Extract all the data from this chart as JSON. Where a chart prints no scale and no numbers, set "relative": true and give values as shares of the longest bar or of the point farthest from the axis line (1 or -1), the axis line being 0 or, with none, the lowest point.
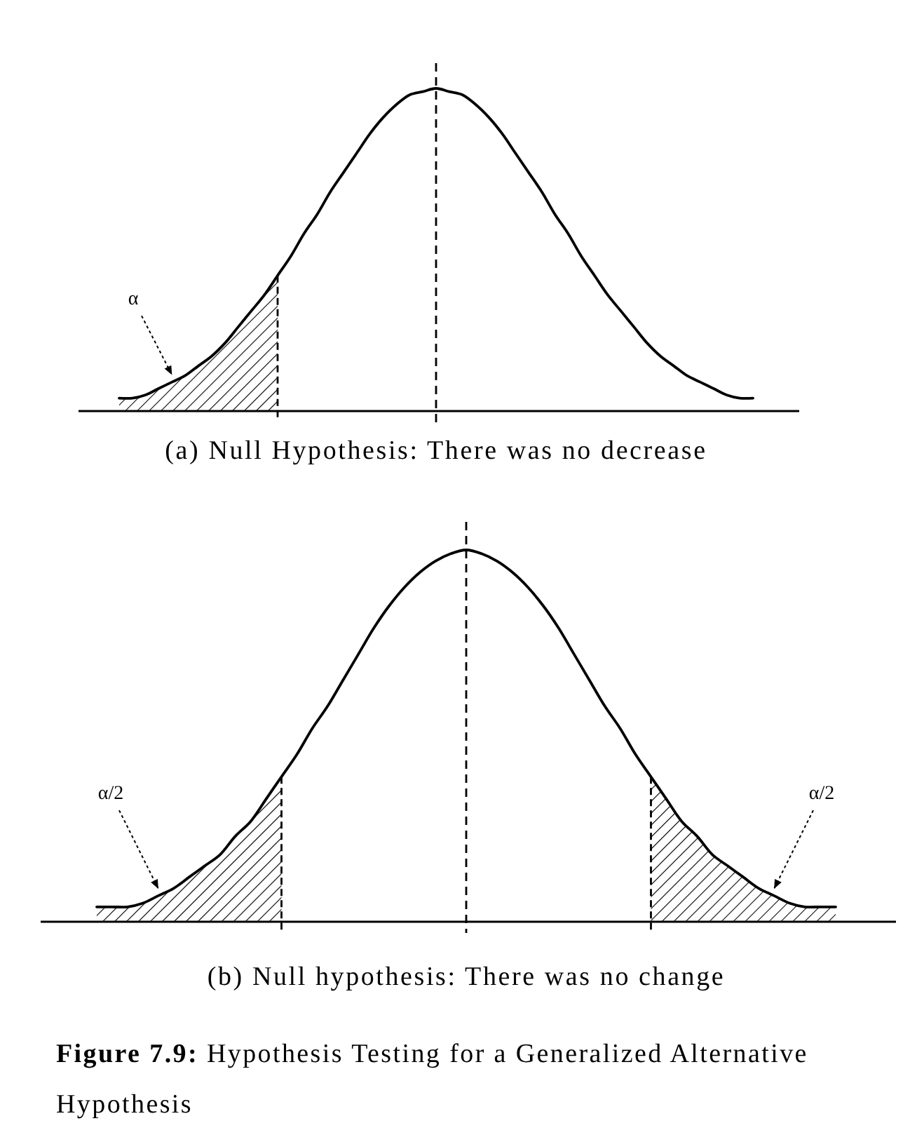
{
  "chart_data": [
    {
      "type": "line",
      "relative": true,
      "xlabel": "(a) Null Hypothesis: There was no decrease",
      "categories": [
        null,
        null,
        null,
        null,
        null,
        null,
        null,
        null,
        null,
        null,
        null,
        null,
        null,
        null,
        null,
        null,
        null,
        null,
        null,
        null,
        null,
        null,
        null,
        null,
        null,
        null,
        null,
        null,
        null,
        null,
        null,
        null,
        null,
        null,
        null,
        null,
        null,
        null,
        null,
        null,
        null,
        null,
        null,
        null,
        null,
        null,
        null,
        null,
        null
      ],
      "series": [
        {
          "type": "line",
          "color": "#000000",
          "values": [
            0.04,
            0.04,
            0.05,
            0.07,
            0.09,
            0.11,
            0.14,
            0.17,
            0.21,
            0.26,
            0.31,
            0.36,
            0.42,
            0.48,
            0.55,
            0.61,
            0.68,
            0.74,
            0.8,
            0.86,
            0.91,
            0.95,
            0.98,
            0.99,
            1,
            0.99,
            0.98,
            0.95,
            0.91,
            0.86,
            0.8,
            0.74,
            0.68,
            0.61,
            0.55,
            0.48,
            0.42,
            0.36,
            0.31,
            0.26,
            0.21,
            0.17,
            0.14,
            0.11,
            0.09,
            0.07,
            0.05,
            0.04,
            0.04
          ]
        },
        {
          "type": "area",
          "name": "α",
          "color": "#000000",
          "values": [
            0.04,
            0.04,
            0.05,
            0.07,
            0.09,
            0.11,
            0.14,
            0.17,
            0.21,
            0.26,
            0.31,
            0.36,
            0.42,
            null,
            null,
            null,
            null,
            null,
            null,
            null,
            null,
            null,
            null,
            null,
            null,
            null,
            null,
            null,
            null,
            null,
            null,
            null,
            null,
            null,
            null,
            null,
            null,
            null,
            null,
            null,
            null,
            null,
            null,
            null,
            null,
            null,
            null,
            null,
            null
          ]
        }
      ]
    },
    {
      "type": "line",
      "relative": true,
      "xlabel": "(b) Null hypothesis: There was no change",
      "categories": [
        null,
        null,
        null,
        null,
        null,
        null,
        null,
        null,
        null,
        null,
        null,
        null,
        null,
        null,
        null,
        null,
        null,
        null,
        null,
        null,
        null,
        null,
        null,
        null,
        null,
        null,
        null,
        null,
        null,
        null,
        null,
        null,
        null,
        null,
        null,
        null,
        null,
        null,
        null,
        null,
        null,
        null,
        null,
        null,
        null,
        null,
        null,
        null,
        null
      ],
      "series": [
        {
          "type": "line",
          "color": "#000000",
          "values": [
            0.04,
            0.04,
            0.04,
            0.05,
            0.07,
            0.09,
            0.12,
            0.15,
            0.18,
            0.23,
            0.27,
            0.33,
            0.39,
            0.45,
            0.52,
            0.58,
            0.65,
            0.72,
            0.79,
            0.85,
            0.9,
            0.94,
            0.97,
            0.99,
            1,
            0.99,
            0.97,
            0.94,
            0.9,
            0.85,
            0.79,
            0.72,
            0.65,
            0.58,
            0.52,
            0.45,
            0.39,
            0.33,
            0.27,
            0.23,
            0.18,
            0.15,
            0.12,
            0.09,
            0.07,
            0.05,
            0.04,
            0.04,
            0.04
          ]
        },
        {
          "type": "area",
          "name": "α/2",
          "color": "#000000",
          "values": [
            0.04,
            0.04,
            0.04,
            0.05,
            0.07,
            0.09,
            0.12,
            0.15,
            0.18,
            0.23,
            0.27,
            0.33,
            0.39,
            null,
            null,
            null,
            null,
            null,
            null,
            null,
            null,
            null,
            null,
            null,
            null,
            null,
            null,
            null,
            null,
            null,
            null,
            null,
            null,
            null,
            null,
            null,
            0.39,
            0.33,
            0.27,
            0.23,
            0.18,
            0.15,
            0.12,
            0.09,
            0.07,
            0.05,
            0.04,
            0.04,
            0.04
          ]
        }
      ],
      "annotations": [
        "Figure 7.9: Hypothesis Testing for a Generalized Alternative Hypothesis"
      ]
    }
  ]
}
